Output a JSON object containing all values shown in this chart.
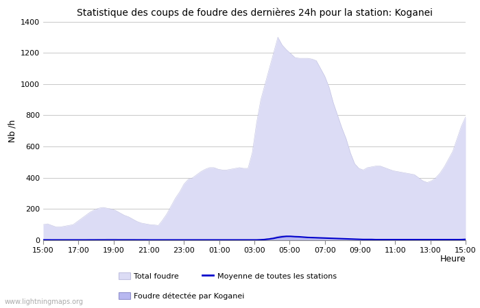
{
  "title": "Statistique des coups de foudre des dernières 24h pour la station: Koganei",
  "xlabel": "Heure",
  "ylabel": "Nb /h",
  "xlim_labels": [
    "15:00",
    "17:00",
    "19:00",
    "21:00",
    "23:00",
    "01:00",
    "03:00",
    "05:00",
    "07:00",
    "09:00",
    "11:00",
    "13:00",
    "15:00"
  ],
  "ylim": [
    0,
    1400
  ],
  "yticks": [
    0,
    200,
    400,
    600,
    800,
    1000,
    1200,
    1400
  ],
  "background_color": "#ffffff",
  "plot_bg_color": "#ffffff",
  "grid_color": "#c8c8c8",
  "total_foudre_color": "#dcdcf5",
  "total_foudre_edge": "#c0c0e0",
  "koganei_color": "#b8b8f0",
  "koganei_edge": "#9090cc",
  "moyenne_color": "#0000cc",
  "watermark": "www.lightningmaps.org",
  "legend_total": "Total foudre",
  "legend_koganei": "Foudre détectée par Koganei",
  "legend_moyenne": "Moyenne de toutes les stations",
  "hours": 24,
  "points_per_hour": 4,
  "total_foudre_values": [
    100,
    105,
    95,
    85,
    85,
    90,
    95,
    100,
    120,
    140,
    160,
    180,
    195,
    205,
    210,
    205,
    200,
    190,
    175,
    160,
    150,
    135,
    120,
    110,
    105,
    100,
    98,
    95,
    130,
    170,
    220,
    270,
    310,
    360,
    390,
    400,
    420,
    440,
    455,
    465,
    465,
    455,
    450,
    450,
    455,
    460,
    465,
    460,
    460,
    560,
    750,
    900,
    1000,
    1100,
    1200,
    1300,
    1250,
    1220,
    1195,
    1170,
    1165,
    1165,
    1165,
    1160,
    1150,
    1100,
    1050,
    980,
    880,
    800,
    720,
    650,
    560,
    490,
    460,
    450,
    465,
    470,
    475,
    475,
    465,
    455,
    445,
    440,
    435,
    430,
    425,
    420,
    400,
    380,
    370,
    380,
    400,
    430,
    470,
    520,
    570,
    650,
    730,
    790
  ],
  "koganei_values": [
    5,
    5,
    4,
    4,
    4,
    4,
    4,
    4,
    4,
    4,
    4,
    5,
    5,
    6,
    7,
    8,
    8,
    8,
    7,
    7,
    7,
    6,
    5,
    5,
    5,
    4,
    4,
    4,
    4,
    4,
    4,
    4,
    4,
    4,
    4,
    4,
    4,
    4,
    4,
    4,
    4,
    4,
    4,
    4,
    4,
    4,
    4,
    4,
    4,
    4,
    4,
    5,
    8,
    12,
    18,
    25,
    30,
    28,
    25,
    22,
    20,
    18,
    16,
    15,
    14,
    13,
    12,
    11,
    10,
    10,
    9,
    9,
    8,
    7,
    6,
    5,
    5,
    5,
    5,
    5,
    5,
    5,
    5,
    5,
    5,
    5,
    5,
    5,
    5,
    4,
    4,
    4,
    4,
    4,
    4,
    5,
    6,
    7,
    8,
    10
  ],
  "moyenne_values": [
    2,
    2,
    2,
    2,
    2,
    2,
    2,
    2,
    2,
    2,
    2,
    2,
    2,
    2,
    2,
    2,
    2,
    2,
    2,
    2,
    2,
    2,
    2,
    2,
    2,
    2,
    2,
    2,
    2,
    2,
    2,
    2,
    2,
    2,
    2,
    2,
    2,
    2,
    2,
    2,
    2,
    2,
    2,
    2,
    2,
    2,
    2,
    2,
    2,
    2,
    2,
    3,
    5,
    8,
    12,
    18,
    22,
    25,
    25,
    23,
    22,
    20,
    18,
    17,
    16,
    15,
    14,
    13,
    12,
    11,
    10,
    9,
    8,
    7,
    6,
    5,
    5,
    5,
    4,
    4,
    4,
    4,
    4,
    4,
    4,
    4,
    4,
    4,
    4,
    4,
    4,
    4,
    4,
    4,
    4,
    4,
    4,
    4,
    4,
    5
  ]
}
